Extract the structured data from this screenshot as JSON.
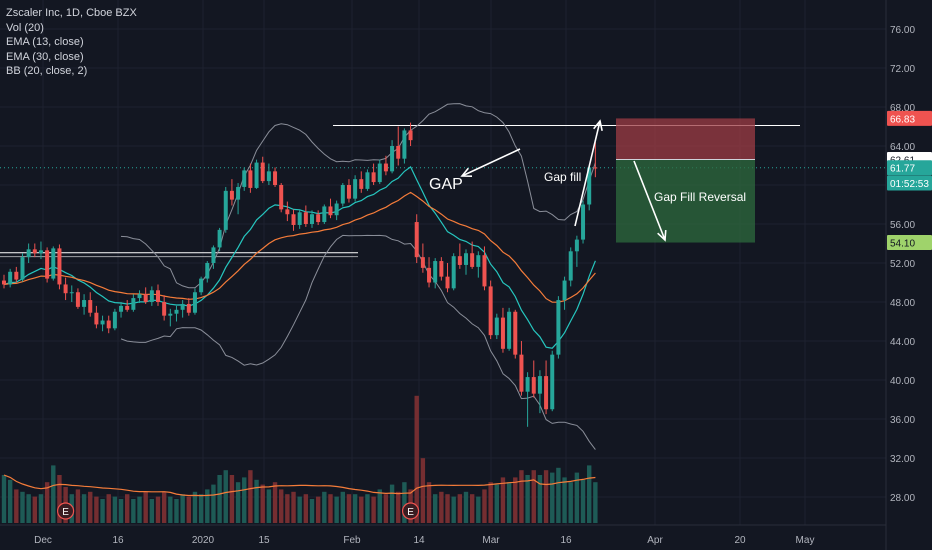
{
  "legend": {
    "title": "Zscaler Inc, 1D, Cboe BZX",
    "vol": "Vol (20)",
    "ema13": "EMA (13, close)",
    "ema30": "EMA (30, close)",
    "bb": "BB (20, close, 2)"
  },
  "colors": {
    "background": "#131722",
    "up": "#26a69a",
    "down": "#ef5350",
    "ema13": "#26c6bf",
    "ema30": "#f57c3a",
    "bb": "#8a8e99",
    "grid": "#1e2230"
  },
  "chart_data": {
    "type": "candlestick",
    "ylim": [
      24,
      78
    ],
    "y_ticks": [
      "76.00",
      "72.00",
      "68.00",
      "64.00",
      "60.00",
      "56.00",
      "52.00",
      "48.00",
      "44.00",
      "40.00",
      "36.00",
      "32.00",
      "28.00"
    ],
    "x_ticks": [
      "Dec",
      "16",
      "2020",
      "15",
      "Feb",
      "14",
      "Mar",
      "16",
      "Apr",
      "20",
      "May"
    ],
    "price_labels": [
      {
        "label": "66.83",
        "value": 66.83,
        "color": "#ef5350",
        "text_color": "#ffffff"
      },
      {
        "label": "62.61",
        "value": 62.61,
        "color": "#ffffff",
        "text_color": "#131722"
      },
      {
        "label": "61.77",
        "value": 61.77,
        "color": "#26a69a",
        "text_color": "#ffffff"
      },
      {
        "label": "01:52:53",
        "value": 60.2,
        "color": "#26a69a",
        "text_color": "#ffffff"
      },
      {
        "label": "54.10",
        "value": 54.1,
        "color": "#9fd36b",
        "text_color": "#131722"
      }
    ],
    "candles": [
      [
        50.2,
        50.8,
        49.4,
        49.8
      ],
      [
        49.8,
        51.4,
        49.5,
        51.1
      ],
      [
        51.1,
        51.6,
        50.0,
        50.3
      ],
      [
        50.3,
        53.0,
        50.1,
        52.6
      ],
      [
        52.6,
        54.0,
        52.0,
        53.4
      ],
      [
        53.4,
        54.0,
        52.6,
        53.0
      ],
      [
        53.0,
        54.2,
        52.4,
        53.3
      ],
      [
        53.3,
        53.6,
        50.0,
        50.4
      ],
      [
        50.4,
        53.7,
        50.2,
        53.5
      ],
      [
        53.5,
        53.9,
        49.3,
        49.8
      ],
      [
        49.8,
        50.5,
        48.2,
        48.9
      ],
      [
        48.9,
        49.7,
        48.0,
        49.0
      ],
      [
        49.0,
        49.4,
        47.3,
        47.5
      ],
      [
        47.5,
        48.8,
        46.7,
        48.2
      ],
      [
        48.2,
        49.0,
        46.5,
        46.9
      ],
      [
        46.9,
        47.6,
        45.3,
        45.7
      ],
      [
        45.7,
        46.6,
        45.0,
        46.1
      ],
      [
        46.1,
        46.6,
        44.8,
        45.3
      ],
      [
        45.3,
        47.3,
        45.1,
        47.0
      ],
      [
        47.0,
        48.0,
        46.4,
        47.6
      ],
      [
        47.6,
        48.2,
        47.0,
        47.2
      ],
      [
        47.2,
        48.8,
        47.0,
        48.4
      ],
      [
        48.4,
        49.2,
        47.9,
        48.8
      ],
      [
        48.8,
        49.5,
        47.8,
        48.0
      ],
      [
        48.0,
        49.6,
        47.6,
        49.2
      ],
      [
        49.2,
        49.8,
        47.6,
        48.0
      ],
      [
        48.0,
        48.7,
        46.1,
        46.6
      ],
      [
        46.6,
        47.3,
        45.5,
        46.8
      ],
      [
        46.8,
        47.6,
        46.0,
        47.2
      ],
      [
        47.2,
        48.2,
        46.4,
        47.8
      ],
      [
        47.8,
        48.4,
        46.6,
        46.9
      ],
      [
        46.9,
        49.4,
        46.7,
        49.0
      ],
      [
        49.0,
        50.6,
        48.7,
        50.4
      ],
      [
        50.4,
        52.2,
        50.0,
        52.0
      ],
      [
        52.0,
        53.8,
        51.4,
        53.6
      ],
      [
        53.6,
        55.6,
        53.2,
        55.4
      ],
      [
        55.4,
        59.8,
        55.1,
        59.4
      ],
      [
        59.4,
        60.6,
        57.9,
        58.5
      ],
      [
        58.5,
        60.2,
        57.0,
        59.8
      ],
      [
        59.8,
        61.8,
        59.4,
        61.5
      ],
      [
        61.5,
        62.2,
        59.2,
        59.7
      ],
      [
        59.7,
        62.6,
        59.6,
        62.3
      ],
      [
        62.3,
        62.9,
        60.2,
        60.4
      ],
      [
        60.4,
        62.2,
        60.0,
        61.4
      ],
      [
        61.4,
        61.8,
        59.8,
        60.0
      ],
      [
        60.0,
        60.2,
        57.2,
        57.5
      ],
      [
        57.5,
        58.3,
        56.3,
        57.0
      ],
      [
        57.0,
        57.5,
        55.3,
        55.9
      ],
      [
        55.9,
        57.4,
        55.5,
        57.2
      ],
      [
        57.2,
        57.9,
        55.7,
        56.0
      ],
      [
        56.0,
        57.4,
        55.6,
        57.0
      ],
      [
        57.0,
        57.4,
        55.9,
        56.2
      ],
      [
        56.2,
        58.0,
        56.0,
        57.8
      ],
      [
        57.8,
        58.6,
        56.6,
        56.9
      ],
      [
        56.9,
        58.4,
        56.4,
        58.1
      ],
      [
        58.1,
        60.2,
        57.8,
        60.0
      ],
      [
        60.0,
        60.6,
        58.2,
        58.6
      ],
      [
        58.6,
        61.0,
        58.3,
        60.6
      ],
      [
        60.6,
        61.4,
        59.2,
        59.6
      ],
      [
        59.6,
        61.6,
        59.4,
        61.3
      ],
      [
        61.3,
        62.2,
        60.0,
        60.3
      ],
      [
        60.3,
        62.6,
        60.1,
        62.2
      ],
      [
        62.2,
        63.0,
        61.0,
        61.4
      ],
      [
        61.4,
        64.6,
        61.2,
        64.0
      ],
      [
        64.0,
        66.0,
        62.0,
        62.7
      ],
      [
        62.7,
        65.8,
        62.2,
        65.6
      ],
      [
        65.6,
        66.4,
        64.0,
        64.6
      ],
      [
        56.2,
        57.0,
        52.0,
        52.6
      ],
      [
        52.6,
        54.0,
        51.0,
        51.5
      ],
      [
        51.5,
        52.6,
        49.5,
        50.0
      ],
      [
        50.0,
        52.5,
        49.4,
        52.2
      ],
      [
        52.2,
        52.6,
        50.2,
        50.6
      ],
      [
        50.6,
        52.0,
        49.0,
        49.4
      ],
      [
        49.4,
        53.0,
        49.2,
        52.7
      ],
      [
        52.7,
        54.0,
        51.4,
        51.8
      ],
      [
        51.8,
        53.4,
        50.8,
        53.0
      ],
      [
        53.0,
        54.2,
        51.4,
        51.6
      ],
      [
        51.6,
        53.2,
        50.5,
        52.8
      ],
      [
        52.8,
        53.7,
        49.2,
        49.6
      ],
      [
        49.6,
        50.2,
        44.2,
        44.6
      ],
      [
        44.6,
        46.8,
        44.2,
        46.4
      ],
      [
        46.4,
        47.4,
        42.8,
        43.2
      ],
      [
        43.2,
        47.4,
        43.0,
        47.0
      ],
      [
        47.0,
        47.2,
        42.2,
        42.6
      ],
      [
        42.6,
        44.0,
        38.4,
        38.8
      ],
      [
        38.8,
        40.8,
        35.2,
        40.3
      ],
      [
        40.3,
        42.0,
        38.2,
        38.6
      ],
      [
        38.6,
        41.0,
        36.6,
        40.4
      ],
      [
        40.4,
        42.0,
        36.5,
        37.0
      ],
      [
        37.0,
        43.0,
        36.8,
        42.6
      ],
      [
        42.6,
        48.6,
        42.2,
        48.2
      ],
      [
        48.2,
        50.6,
        47.2,
        50.2
      ],
      [
        50.2,
        53.6,
        49.6,
        53.2
      ],
      [
        53.2,
        54.8,
        51.6,
        54.4
      ],
      [
        54.4,
        58.4,
        54.0,
        58.0
      ],
      [
        58.0,
        62.0,
        57.4,
        61.8
      ],
      [
        61.8,
        64.4,
        60.8,
        61.77
      ]
    ],
    "volume": [
      {
        "v": 20,
        "up": true
      },
      {
        "v": 18,
        "up": true
      },
      {
        "v": 14,
        "up": false
      },
      {
        "v": 13,
        "up": true
      },
      {
        "v": 12,
        "up": true
      },
      {
        "v": 11,
        "up": false
      },
      {
        "v": 12,
        "up": true
      },
      {
        "v": 17,
        "up": false
      },
      {
        "v": 24,
        "up": true
      },
      {
        "v": 20,
        "up": false
      },
      {
        "v": 15,
        "up": false
      },
      {
        "v": 12,
        "up": true
      },
      {
        "v": 14,
        "up": false
      },
      {
        "v": 12,
        "up": true
      },
      {
        "v": 13,
        "up": false
      },
      {
        "v": 11,
        "up": false
      },
      {
        "v": 10,
        "up": true
      },
      {
        "v": 12,
        "up": false
      },
      {
        "v": 11,
        "up": true
      },
      {
        "v": 10,
        "up": true
      },
      {
        "v": 12,
        "up": false
      },
      {
        "v": 10,
        "up": true
      },
      {
        "v": 11,
        "up": true
      },
      {
        "v": 13,
        "up": false
      },
      {
        "v": 10,
        "up": true
      },
      {
        "v": 11,
        "up": false
      },
      {
        "v": 13,
        "up": false
      },
      {
        "v": 11,
        "up": true
      },
      {
        "v": 10,
        "up": true
      },
      {
        "v": 12,
        "up": true
      },
      {
        "v": 11,
        "up": false
      },
      {
        "v": 13,
        "up": true
      },
      {
        "v": 12,
        "up": true
      },
      {
        "v": 14,
        "up": true
      },
      {
        "v": 16,
        "up": true
      },
      {
        "v": 20,
        "up": true
      },
      {
        "v": 22,
        "up": true
      },
      {
        "v": 20,
        "up": false
      },
      {
        "v": 17,
        "up": true
      },
      {
        "v": 19,
        "up": true
      },
      {
        "v": 22,
        "up": false
      },
      {
        "v": 18,
        "up": true
      },
      {
        "v": 16,
        "up": false
      },
      {
        "v": 14,
        "up": true
      },
      {
        "v": 17,
        "up": false
      },
      {
        "v": 14,
        "up": false
      },
      {
        "v": 12,
        "up": false
      },
      {
        "v": 13,
        "up": false
      },
      {
        "v": 11,
        "up": true
      },
      {
        "v": 12,
        "up": false
      },
      {
        "v": 10,
        "up": true
      },
      {
        "v": 11,
        "up": false
      },
      {
        "v": 13,
        "up": true
      },
      {
        "v": 12,
        "up": false
      },
      {
        "v": 11,
        "up": true
      },
      {
        "v": 13,
        "up": true
      },
      {
        "v": 12,
        "up": false
      },
      {
        "v": 12,
        "up": true
      },
      {
        "v": 11,
        "up": false
      },
      {
        "v": 12,
        "up": true
      },
      {
        "v": 11,
        "up": false
      },
      {
        "v": 14,
        "up": true
      },
      {
        "v": 12,
        "up": false
      },
      {
        "v": 16,
        "up": true
      },
      {
        "v": 13,
        "up": false
      },
      {
        "v": 17,
        "up": true
      },
      {
        "v": 14,
        "up": false
      },
      {
        "v": 53,
        "up": false
      },
      {
        "v": 27,
        "up": false
      },
      {
        "v": 17,
        "up": false
      },
      {
        "v": 12,
        "up": true
      },
      {
        "v": 13,
        "up": false
      },
      {
        "v": 12,
        "up": false
      },
      {
        "v": 11,
        "up": true
      },
      {
        "v": 12,
        "up": false
      },
      {
        "v": 13,
        "up": true
      },
      {
        "v": 12,
        "up": false
      },
      {
        "v": 11,
        "up": true
      },
      {
        "v": 14,
        "up": false
      },
      {
        "v": 17,
        "up": false
      },
      {
        "v": 16,
        "up": true
      },
      {
        "v": 19,
        "up": false
      },
      {
        "v": 17,
        "up": true
      },
      {
        "v": 19,
        "up": false
      },
      {
        "v": 22,
        "up": false
      },
      {
        "v": 20,
        "up": true
      },
      {
        "v": 22,
        "up": false
      },
      {
        "v": 20,
        "up": true
      },
      {
        "v": 22,
        "up": false
      },
      {
        "v": 21,
        "up": true
      },
      {
        "v": 23,
        "up": true
      },
      {
        "v": 19,
        "up": true
      },
      {
        "v": 17,
        "up": true
      },
      {
        "v": 21,
        "up": true
      },
      {
        "v": 18,
        "up": true
      },
      {
        "v": 24,
        "up": true
      },
      {
        "v": 17,
        "up": true
      }
    ],
    "earnings_markers": [
      {
        "label": "E",
        "index": 10
      },
      {
        "label": "E",
        "index": 66
      }
    ],
    "annotations": [
      {
        "text": "GAP",
        "kind": "large"
      },
      {
        "text": "Gap fill",
        "kind": "small"
      },
      {
        "text": "Gap Fill Reversal",
        "kind": "small"
      }
    ]
  }
}
